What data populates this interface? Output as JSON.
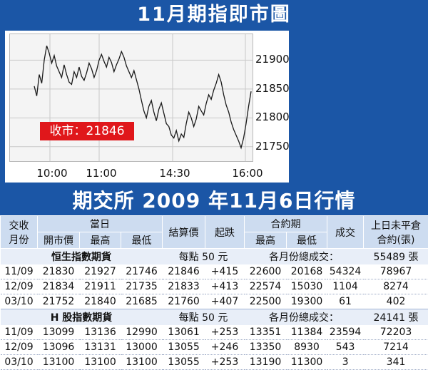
{
  "chart_data": {
    "type": "line",
    "title": "11月期指即市圖",
    "x_ticks": [
      "10:00",
      "11:00",
      "14:30",
      "16:00"
    ],
    "y_ticks": [
      21900,
      21850,
      21800,
      21750
    ],
    "ylim": [
      21725,
      21945
    ],
    "close_label": "收市：21846",
    "grid": true,
    "series": [
      {
        "values": [
          21855,
          21838,
          21875,
          21860,
          21900,
          21925,
          21912,
          21895,
          21908,
          21890,
          21880,
          21870,
          21892,
          21875,
          21862,
          21858,
          21880,
          21870,
          21888,
          21872,
          21865,
          21878,
          21895,
          21885,
          21870,
          21882,
          21900,
          21910,
          21898,
          21888,
          21905,
          21896,
          21880,
          21892,
          21902,
          21915,
          21905,
          21890,
          21880,
          21870,
          21882,
          21866,
          21850,
          21830,
          21812,
          21800,
          21820,
          21830,
          21810,
          21795,
          21815,
          21826,
          21808,
          21790,
          21785,
          21770,
          21765,
          21778,
          21760,
          21772,
          21766,
          21790,
          21810,
          21800,
          21785,
          21798,
          21820,
          21812,
          21805,
          21825,
          21840,
          21832,
          21848,
          21860,
          21875,
          21862,
          21840,
          21822,
          21810,
          21793,
          21780,
          21770,
          21760,
          21748,
          21765,
          21790,
          21820,
          21846
        ]
      }
    ]
  },
  "table": {
    "title": "期交所 2009 年11月6日行情",
    "header": {
      "contract_month_a": "交收",
      "contract_month_b": "月份",
      "today": "當日",
      "open": "開市價",
      "high": "最高",
      "low": "最低",
      "settle": "結算價",
      "change": "起跌",
      "contract_period": "合約期",
      "cp_high": "最高",
      "cp_low": "最低",
      "volume": "成交",
      "oi_a": "上日未平倉",
      "oi_b": "合約(張)"
    },
    "sections": [
      {
        "name": "恒生指數期貨",
        "per_point": "每點 50 元",
        "total_label": "各月份總成交：",
        "total": "55489 張",
        "rows": [
          [
            "11/09",
            "21830",
            "21927",
            "21746",
            "21846",
            "+415",
            "22600",
            "20168",
            "54324",
            "78967"
          ],
          [
            "12/09",
            "21834",
            "21911",
            "21735",
            "21833",
            "+413",
            "22574",
            "15030",
            "1104",
            "8274"
          ],
          [
            "03/10",
            "21752",
            "21840",
            "21685",
            "21760",
            "+407",
            "22500",
            "19300",
            "61",
            "402"
          ]
        ]
      },
      {
        "name": "H 股指數期貨",
        "per_point": "每點 50 元",
        "total_label": "各月份總成交：",
        "total": "24141 張",
        "rows": [
          [
            "11/09",
            "13099",
            "13136",
            "12990",
            "13061",
            "+253",
            "13351",
            "11384",
            "23594",
            "72203"
          ],
          [
            "12/09",
            "13096",
            "13131",
            "13000",
            "13055",
            "+246",
            "13350",
            "8930",
            "543",
            "7214"
          ],
          [
            "03/10",
            "13100",
            "13100",
            "13100",
            "13055",
            "+253",
            "13190",
            "11300",
            "3",
            "341"
          ]
        ]
      }
    ]
  }
}
